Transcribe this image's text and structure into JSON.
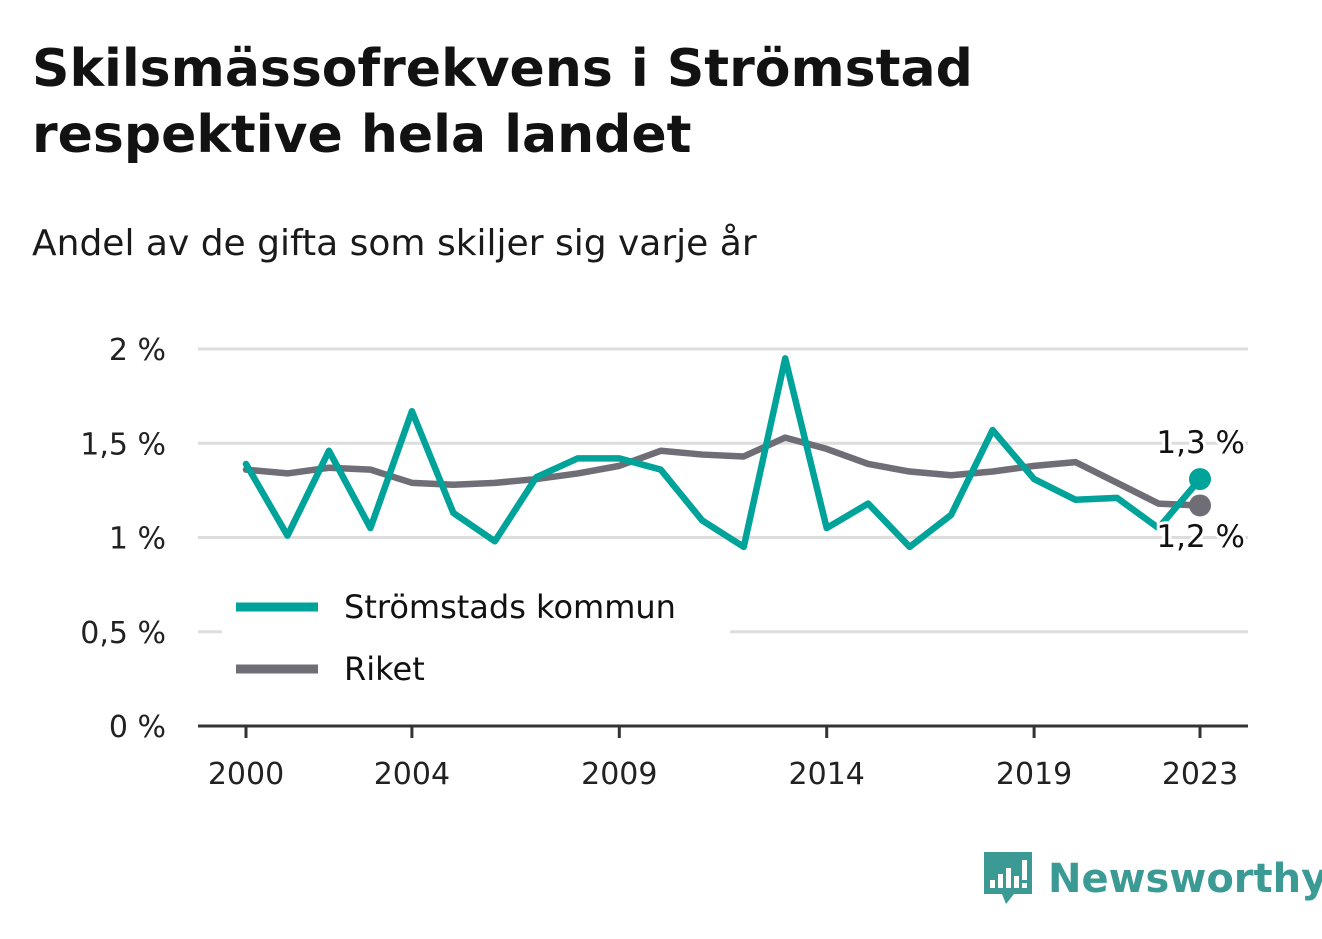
{
  "title": "Skilsmässofrekvens i Strömstad respektive hela landet",
  "subtitle": "Andel av de gifta som skiljer sig varje år",
  "brand": {
    "name": "Newsworthy",
    "color": "#3c9a95",
    "icon": "newsworthy-logo-icon"
  },
  "chart_data": {
    "type": "line",
    "x": [
      2000,
      2001,
      2002,
      2003,
      2004,
      2005,
      2006,
      2007,
      2008,
      2009,
      2010,
      2011,
      2012,
      2013,
      2014,
      2015,
      2016,
      2017,
      2018,
      2019,
      2020,
      2021,
      2022,
      2023
    ],
    "x_ticks": [
      2000,
      2004,
      2009,
      2014,
      2019,
      2023
    ],
    "y_ticks": [
      0,
      0.5,
      1,
      1.5,
      2
    ],
    "y_tick_labels": [
      "0 %",
      "0,5 %",
      "1 %",
      "1,5 %",
      "2 %"
    ],
    "ylim": [
      0,
      2
    ],
    "grid": true,
    "legend_position": "lower-left",
    "series": [
      {
        "name": "Strömstads kommun",
        "color": "#00a39a",
        "values": [
          1.39,
          1.01,
          1.46,
          1.05,
          1.67,
          1.13,
          0.98,
          1.32,
          1.42,
          1.42,
          1.36,
          1.09,
          0.95,
          1.95,
          1.05,
          1.18,
          0.95,
          1.12,
          1.57,
          1.31,
          1.2,
          1.21,
          1.05,
          1.31
        ],
        "end_label": "1,3 %"
      },
      {
        "name": "Riket",
        "color": "#6f6e76",
        "values": [
          1.36,
          1.34,
          1.37,
          1.36,
          1.29,
          1.28,
          1.29,
          1.31,
          1.34,
          1.38,
          1.46,
          1.44,
          1.43,
          1.53,
          1.47,
          1.39,
          1.35,
          1.33,
          1.35,
          1.38,
          1.4,
          1.29,
          1.18,
          1.17
        ],
        "end_label": "1,2 %"
      }
    ]
  }
}
